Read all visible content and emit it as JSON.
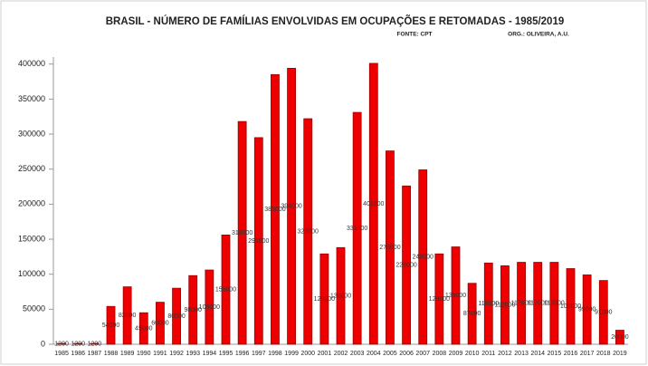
{
  "chart_data": {
    "type": "bar",
    "title": "BRASIL - NÚMERO DE FAMÍLIAS ENVOLVIDAS EM OCUPAÇÕES E RETOMADAS - 1985/2019",
    "annotations": [
      "FONTE: CPT",
      "ORG.: OLIVEIRA, A.U."
    ],
    "categories": [
      "1985",
      "1986",
      "1987",
      "1988",
      "1989",
      "1990",
      "1991",
      "1992",
      "1993",
      "1994",
      "1995",
      "1996",
      "1997",
      "1998",
      "1999",
      "2000",
      "2001",
      "2002",
      "2003",
      "2004",
      "2005",
      "2006",
      "2007",
      "2008",
      "2009",
      "2010",
      "2011",
      "2012",
      "2013",
      "2014",
      "2015",
      "2016",
      "2017",
      "2018",
      "2019"
    ],
    "values": [
      1200,
      1200,
      1200,
      54000,
      82000,
      45000,
      60000,
      80000,
      98000,
      106000,
      156000,
      318000,
      295000,
      385000,
      394000,
      322000,
      129000,
      138000,
      331000,
      401000,
      276000,
      226000,
      249000,
      129000,
      139000,
      87000,
      116000,
      112000,
      117000,
      117000,
      117000,
      108000,
      99000,
      91000,
      20000
    ],
    "color": "#ee0000",
    "ylim": [
      0,
      410000
    ],
    "yticks": [
      0,
      50000,
      100000,
      150000,
      200000,
      250000,
      300000,
      350000,
      400000
    ],
    "grid": false
  }
}
